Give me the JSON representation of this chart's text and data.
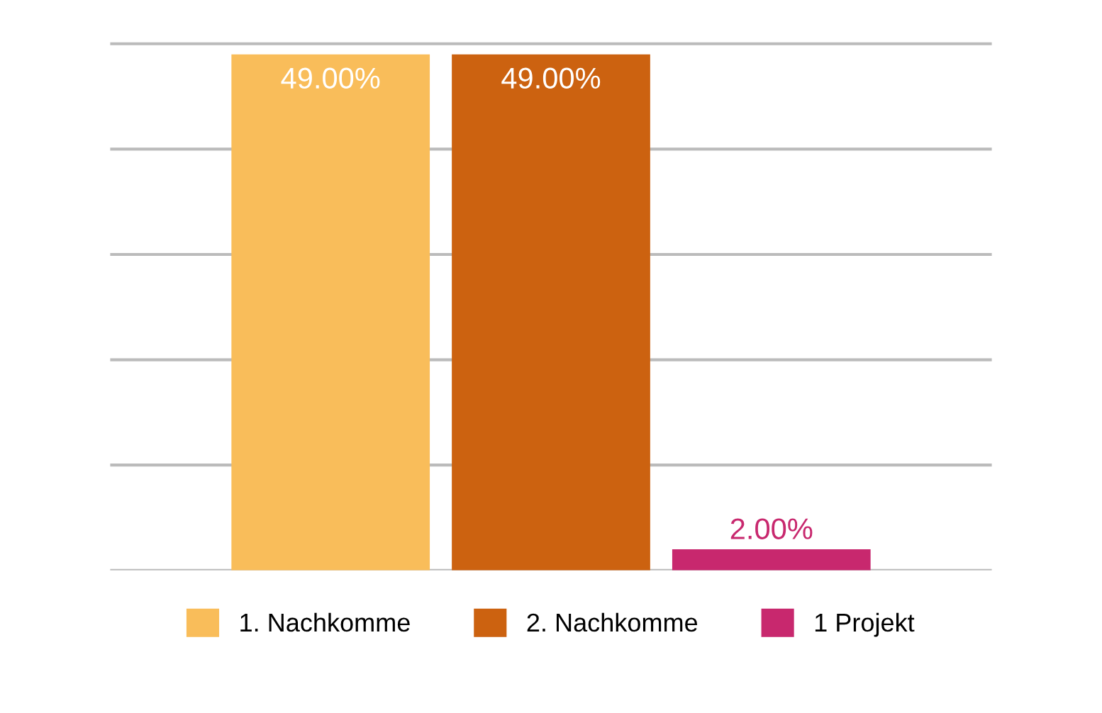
{
  "chart_data": {
    "type": "bar",
    "categories": [
      null
    ],
    "series": [
      {
        "name": "1. Nachkomme",
        "color": "#f9bd5a",
        "values": [
          49
        ],
        "value_labels": [
          "49.00%"
        ]
      },
      {
        "name": "2. Nachkomme",
        "color": "#cc6210",
        "values": [
          49
        ],
        "value_labels": [
          "49.00%"
        ]
      },
      {
        "name": "1 Projekt",
        "color": "#c8286e",
        "values": [
          2
        ],
        "value_labels": [
          "2.00%"
        ]
      }
    ],
    "tick_labels": false,
    "grid": "y",
    "legend": "bottom"
  }
}
